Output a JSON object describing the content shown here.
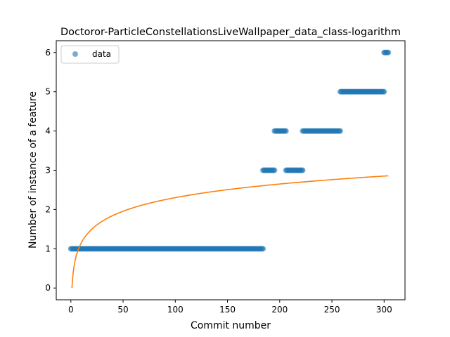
{
  "chart_data": {
    "type": "scatter",
    "title": "Doctoror-ParticleConstellationsLiveWallpaper_data_class-logarithm",
    "xlabel": "Commit number",
    "ylabel": "Number of instance of a feature",
    "xlim": [
      -14,
      320
    ],
    "ylim": [
      -0.3,
      6.3
    ],
    "xticks": [
      0,
      50,
      100,
      150,
      200,
      250,
      300
    ],
    "yticks": [
      0,
      1,
      2,
      3,
      4,
      5,
      6
    ],
    "grid": false,
    "legend": {
      "position": "top-left",
      "entries": [
        "data"
      ]
    },
    "series": [
      {
        "name": "data",
        "style": "markers",
        "color": "#1f77b4",
        "segments": [
          {
            "x_start": 0,
            "x_end": 184,
            "y": 1
          },
          {
            "x_start": 184,
            "x_end": 195,
            "y": 3
          },
          {
            "x_start": 195,
            "x_end": 206,
            "y": 4
          },
          {
            "x_start": 206,
            "x_end": 222,
            "y": 3
          },
          {
            "x_start": 222,
            "x_end": 258,
            "y": 4
          },
          {
            "x_start": 258,
            "x_end": 300,
            "y": 5
          },
          {
            "x_start": 300,
            "x_end": 304,
            "y": 6
          }
        ]
      },
      {
        "style": "line",
        "color": "#ff7f0e",
        "function": "logarithm",
        "x_range": [
          1,
          304
        ],
        "fit": {
          "a": 0.5,
          "b": 0
        }
      }
    ]
  }
}
